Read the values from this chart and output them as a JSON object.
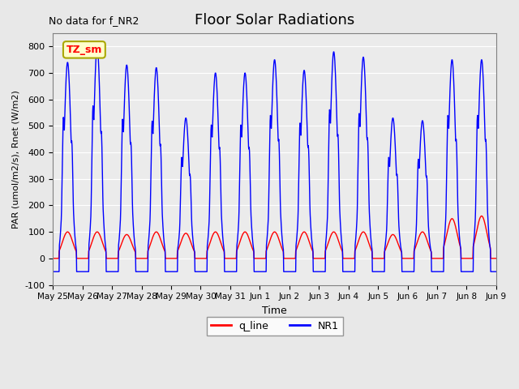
{
  "title": "Floor Solar Radiations",
  "xlabel": "Time",
  "ylabel": "PAR (umol/m2/s), Rnet (W/m2)",
  "ylim": [
    -100,
    850
  ],
  "yticks": [
    -100,
    0,
    100,
    200,
    300,
    400,
    500,
    600,
    700,
    800
  ],
  "no_data_text": "No data for f_NR2",
  "zone_label": "TZ_sm",
  "xtick_labels": [
    "May 25",
    "May 26",
    "May 27",
    "May 28",
    "May 29",
    "May 30",
    "May 31",
    "Jun 1",
    "Jun 2",
    "Jun 3",
    "Jun 4",
    "Jun 5",
    "Jun 6",
    "Jun 7",
    "Jun 8",
    "Jun 9"
  ],
  "legend_entries": [
    "q_line",
    "NR1"
  ],
  "bg_color": "#e8e8e8",
  "plot_bg_color": "#ebebeb",
  "num_days": 15,
  "points_per_day": 96,
  "NR1_peaks": [
    740,
    800,
    730,
    720,
    530,
    700,
    700,
    750,
    710,
    780,
    760,
    530,
    520,
    750,
    750
  ],
  "q_peaks": [
    100,
    100,
    90,
    100,
    95,
    100,
    100,
    100,
    100,
    100,
    100,
    90,
    100,
    150,
    160
  ]
}
